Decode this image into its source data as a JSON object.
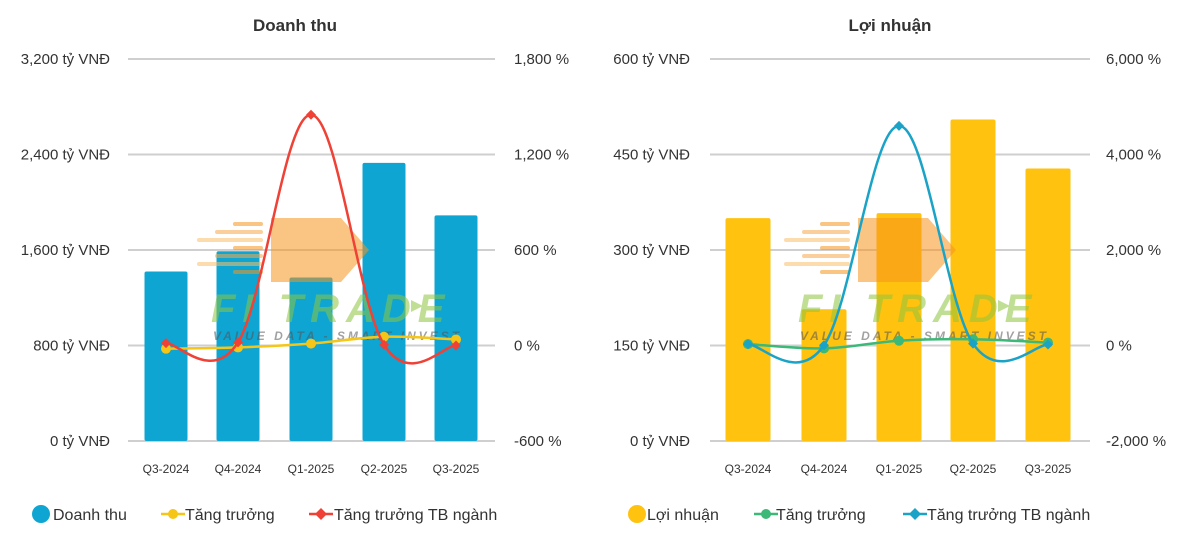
{
  "chart_data": [
    {
      "type": "bar",
      "title": "Doanh thu",
      "categories": [
        "Q3-2024",
        "Q4-2024",
        "Q1-2025",
        "Q2-2025",
        "Q3-2025"
      ],
      "left_axis": {
        "min": 0,
        "max": 3200,
        "ticks": [
          0,
          800,
          1600,
          2400,
          3200
        ],
        "tick_labels": [
          "0 tỷ VNĐ",
          "800 tỷ VNĐ",
          "1,600 tỷ VNĐ",
          "2,400 tỷ VNĐ",
          "3,200 tỷ VNĐ"
        ]
      },
      "right_axis": {
        "min": -600,
        "max": 1800,
        "ticks": [
          -600,
          0,
          600,
          1200,
          1800
        ],
        "tick_labels": [
          "-600 %",
          "0 %",
          "600 %",
          "1,200 %",
          "1,800 %"
        ]
      },
      "series": [
        {
          "name": "Doanh thu",
          "kind": "bar",
          "axis": "left",
          "color": "#0ea5d2",
          "values": [
            1420,
            1590,
            1370,
            2330,
            1890
          ]
        },
        {
          "name": "Tăng trưởng",
          "kind": "line",
          "axis": "right",
          "color": "#f5c518",
          "marker": "circle",
          "values": [
            -20,
            -12,
            12,
            55,
            38
          ]
        },
        {
          "name": "Tăng trưởng TB ngành",
          "kind": "line",
          "axis": "right",
          "color": "#ef4136",
          "marker": "diamond",
          "values": [
            15,
            20,
            1450,
            5,
            0
          ]
        }
      ],
      "grid": true
    },
    {
      "type": "bar",
      "title": "Lợi nhuận",
      "categories": [
        "Q3-2024",
        "Q4-2024",
        "Q1-2025",
        "Q2-2025",
        "Q3-2025"
      ],
      "left_axis": {
        "min": 0,
        "max": 600,
        "ticks": [
          0,
          150,
          300,
          450,
          600
        ],
        "tick_labels": [
          "0 tỷ VNĐ",
          "150 tỷ VNĐ",
          "300 tỷ VNĐ",
          "450 tỷ VNĐ",
          "600 tỷ VNĐ"
        ]
      },
      "right_axis": {
        "min": -2000,
        "max": 6000,
        "ticks": [
          -2000,
          0,
          2000,
          4000,
          6000
        ],
        "tick_labels": [
          "-2,000 %",
          "0 %",
          "2,000 %",
          "4,000 %",
          "6,000 %"
        ]
      },
      "series": [
        {
          "name": "Lợi nhuận",
          "kind": "bar",
          "axis": "left",
          "color": "#ffc20e",
          "values": [
            350,
            207,
            358,
            505,
            428
          ]
        },
        {
          "name": "Tăng trưởng",
          "kind": "line",
          "axis": "right",
          "color": "#3cb878",
          "marker": "circle",
          "values": [
            30,
            -60,
            100,
            130,
            60
          ]
        },
        {
          "name": "Tăng trưởng TB ngành",
          "kind": "line",
          "axis": "right",
          "color": "#1aa3c7",
          "marker": "diamond",
          "values": [
            30,
            5,
            4600,
            40,
            20
          ]
        }
      ],
      "grid": true
    }
  ],
  "watermark": {
    "brand": "FI TRADE",
    "tagline": "VALUE DATA - SMART INVEST"
  }
}
